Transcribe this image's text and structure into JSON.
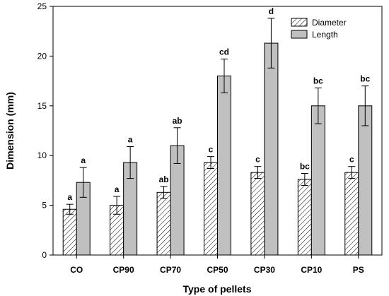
{
  "chart_data": {
    "type": "bar",
    "title": "",
    "xlabel": "Type of pellets",
    "ylabel": "Dimension (mm)",
    "ylim": [
      0,
      25
    ],
    "yticks": [
      0,
      5,
      10,
      15,
      20,
      25
    ],
    "grid": false,
    "legend_position": "top-right",
    "categories": [
      "CO",
      "CP90",
      "CP70",
      "CP50",
      "CP30",
      "CP10",
      "PS"
    ],
    "series": [
      {
        "name": "Diameter",
        "pattern": "hatched",
        "color": "#ffffff",
        "values": [
          4.6,
          5.0,
          6.3,
          9.3,
          8.3,
          7.6,
          8.3
        ],
        "errors": [
          0.5,
          0.9,
          0.6,
          0.6,
          0.6,
          0.6,
          0.6
        ],
        "labels": [
          "a",
          "a",
          "ab",
          "c",
          "c",
          "bc",
          "c"
        ]
      },
      {
        "name": "Length",
        "pattern": "solid",
        "color": "#c0c0c0",
        "values": [
          7.3,
          9.3,
          11.0,
          18.0,
          21.3,
          15.0,
          15.0
        ],
        "errors": [
          1.5,
          1.6,
          1.8,
          1.7,
          2.5,
          1.8,
          2.0
        ],
        "labels": [
          "a",
          "a",
          "ab",
          "cd",
          "d",
          "bc",
          "bc"
        ]
      }
    ]
  }
}
